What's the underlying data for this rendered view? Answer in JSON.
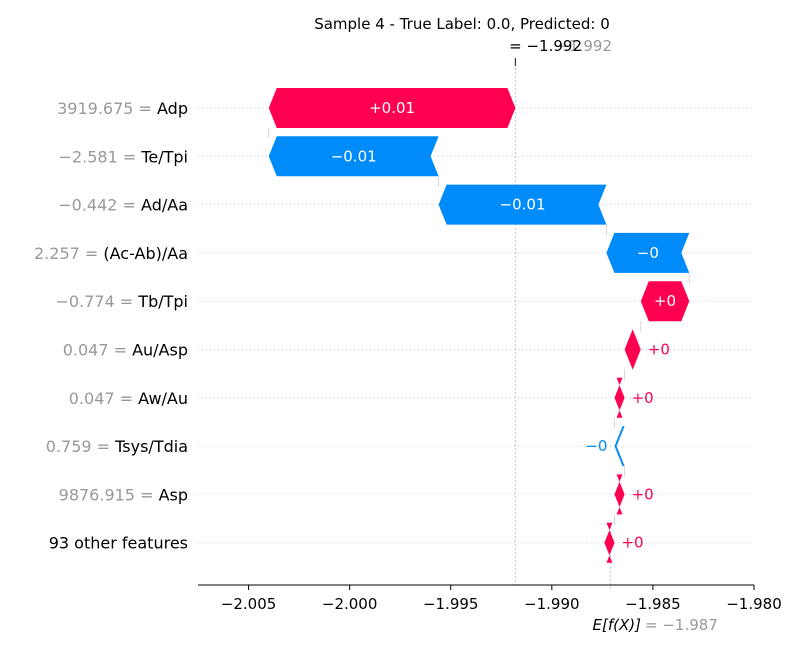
{
  "chart_data": {
    "type": "waterfall",
    "title": "Sample 4 - True Label: 0.0, Predicted: 0",
    "fx_label": "= −1.992",
    "fx_value_ghost": "−1.992",
    "base_label": "E[f(X)]",
    "base_value_text": "= −1.987",
    "base_value": -1.9871,
    "output_value": -1.9918,
    "xlim": [
      -2.0075,
      -1.98
    ],
    "xticks": [
      -2.005,
      -2.0,
      -1.995,
      -1.99,
      -1.985,
      -1.98
    ],
    "xtick_labels": [
      "−2.005",
      "−2.000",
      "−1.995",
      "−1.990",
      "−1.985",
      "−1.980"
    ],
    "features": [
      {
        "value": "3919.675",
        "name": "Adp",
        "start": -1.9918,
        "end": -2.004,
        "label": "+0.01",
        "sign": "pos"
      },
      {
        "value": "−2.581",
        "name": "Te/Tpi",
        "start": -2.004,
        "end": -1.9956,
        "label": "−0.01",
        "sign": "neg"
      },
      {
        "value": "−0.442",
        "name": "Ad/Aa",
        "start": -1.9956,
        "end": -1.9873,
        "label": "−0.01",
        "sign": "neg"
      },
      {
        "value": "2.257",
        "name": "(Ac-Ab)/Aa",
        "start": -1.9873,
        "end": -1.9832,
        "label": "−0",
        "sign": "neg"
      },
      {
        "value": "−0.774",
        "name": "Tb/Tpi",
        "start": -1.9832,
        "end": -1.9856,
        "label": "+0",
        "sign": "pos"
      },
      {
        "value": "0.047",
        "name": "Au/Asp",
        "start": -1.9856,
        "end": -1.9864,
        "label": "+0",
        "sign": "pos"
      },
      {
        "value": "0.047",
        "name": "Aw/Au",
        "start": -1.9864,
        "end": -1.9869,
        "label": "+0",
        "sign": "pos"
      },
      {
        "value": "0.759",
        "name": "Tsys/Tdia",
        "start": -1.9869,
        "end": -1.9864,
        "label": "−0",
        "sign": "neg"
      },
      {
        "value": "9876.915",
        "name": "Asp",
        "start": -1.9864,
        "end": -1.9869,
        "label": "+0",
        "sign": "pos"
      },
      {
        "value": "",
        "name": "93 other features",
        "start": -1.9869,
        "end": -1.9874,
        "label": "+0",
        "sign": "pos"
      }
    ],
    "colors": {
      "positive": "#ff0051",
      "negative": "#008bfb",
      "value_text": "#999999",
      "name_text": "#000000"
    }
  }
}
